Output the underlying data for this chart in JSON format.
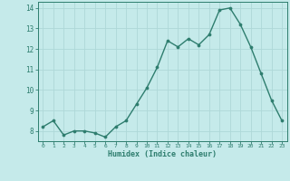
{
  "x": [
    0,
    1,
    2,
    3,
    4,
    5,
    6,
    7,
    8,
    9,
    10,
    11,
    12,
    13,
    14,
    15,
    16,
    17,
    18,
    19,
    20,
    21,
    22,
    23
  ],
  "y": [
    8.2,
    8.5,
    7.8,
    8.0,
    8.0,
    7.9,
    7.7,
    8.2,
    8.5,
    9.3,
    10.1,
    11.1,
    12.4,
    12.1,
    12.5,
    12.2,
    12.7,
    13.9,
    14.0,
    13.2,
    12.1,
    10.8,
    9.5,
    8.5
  ],
  "xlabel": "Humidex (Indice chaleur)",
  "ylim": [
    7.5,
    14.3
  ],
  "xlim": [
    -0.5,
    23.5
  ],
  "yticks": [
    8,
    9,
    10,
    11,
    12,
    13,
    14
  ],
  "xticks": [
    0,
    1,
    2,
    3,
    4,
    5,
    6,
    7,
    8,
    9,
    10,
    11,
    12,
    13,
    14,
    15,
    16,
    17,
    18,
    19,
    20,
    21,
    22,
    23
  ],
  "line_color": "#2e7d6e",
  "marker": "o",
  "marker_size": 2.2,
  "bg_color": "#c5eaea",
  "grid_color": "#aed8d8",
  "axis_color": "#2e7d6e",
  "tick_color": "#2e7d6e",
  "label_color": "#2e7d6e"
}
